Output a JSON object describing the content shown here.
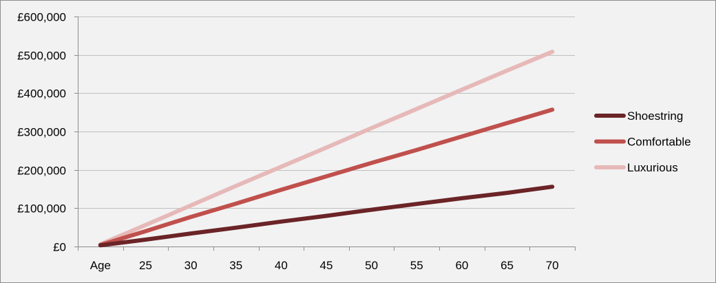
{
  "chart_data": {
    "type": "line",
    "categories": [
      "Age",
      "25",
      "30",
      "35",
      "40",
      "45",
      "50",
      "55",
      "60",
      "65",
      "70"
    ],
    "y_tick_labels": [
      "£0",
      "£100,000",
      "£200,000",
      "£300,000",
      "£400,000",
      "£500,000",
      "£600,000"
    ],
    "y_ticks": [
      0,
      100000,
      200000,
      300000,
      400000,
      500000,
      600000
    ],
    "ylim": [
      0,
      600000
    ],
    "grid": true,
    "legend_position": "right",
    "series": [
      {
        "name": "Shoestring",
        "color": "#6b2427",
        "values": [
          3000,
          18000,
          34000,
          49000,
          65000,
          80000,
          96000,
          111000,
          126000,
          140000,
          156000
        ]
      },
      {
        "name": "Comfortable",
        "color": "#c0504d",
        "values": [
          4000,
          40000,
          77000,
          112000,
          148000,
          183000,
          218000,
          252000,
          287000,
          322000,
          357000
        ]
      },
      {
        "name": "Luxurious",
        "color": "#e6b9b8",
        "values": [
          6000,
          56000,
          107000,
          158000,
          208000,
          258000,
          309000,
          359000,
          409000,
          459000,
          508000
        ]
      }
    ]
  }
}
